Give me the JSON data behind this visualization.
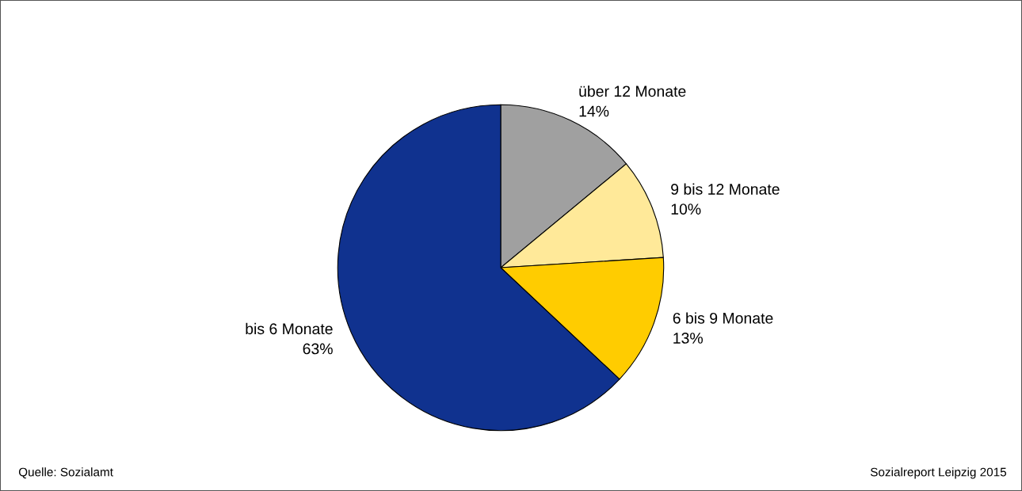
{
  "chart_data": {
    "type": "pie",
    "categories": [
      "über 12 Monate",
      "9 bis 12 Monate",
      "6 bis 9 Monate",
      "bis 6 Monate"
    ],
    "values": [
      14,
      10,
      13,
      63
    ],
    "colors": [
      "#a0a0a0",
      "#ffe999",
      "#ffcc00",
      "#10328f"
    ],
    "value_labels": [
      "14%",
      "10%",
      "13%",
      "63%"
    ],
    "annotations": [
      "Quelle: Sozialamt",
      "Sozialreport Leipzig 2015"
    ]
  }
}
